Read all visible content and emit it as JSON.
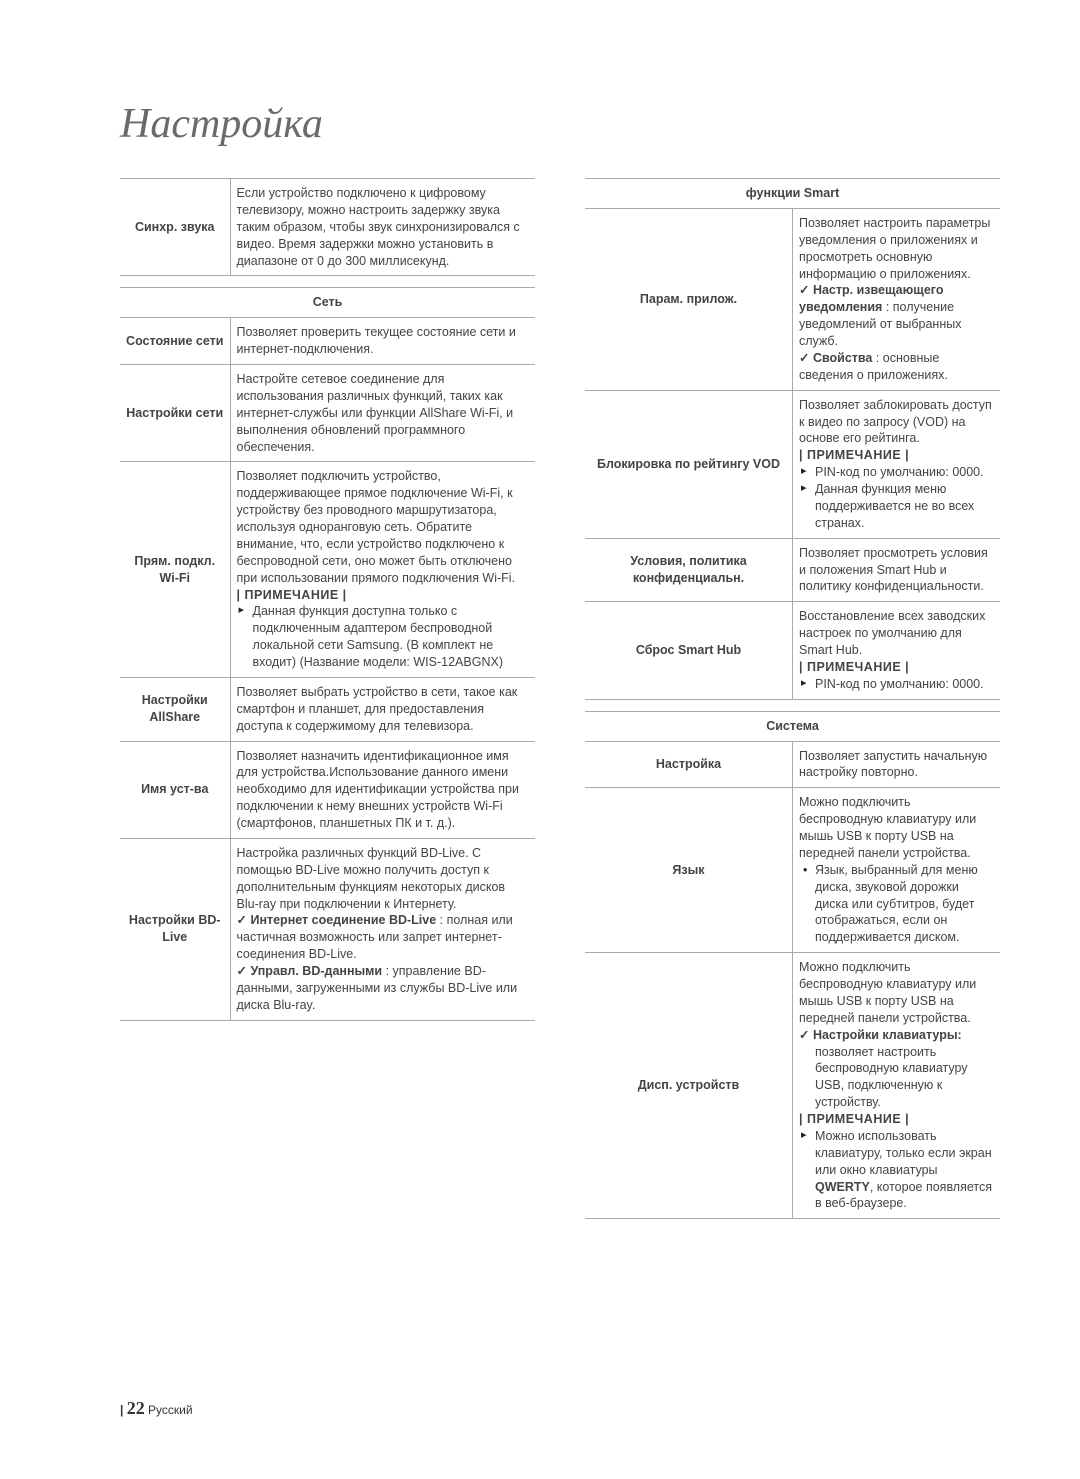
{
  "title": "Настройка",
  "footer": {
    "page": "22",
    "lang": "Русский"
  },
  "left": {
    "rows": [
      {
        "label": "Синхр. звука",
        "desc": "Если устройство подключено к цифровому телевизору, можно настроить задержку звука таким образом, чтобы звук синхронизировался с видео. Время задержки можно установить в диапазоне от 0 до 300 миллисекунд."
      }
    ],
    "net_header": "Сеть",
    "net": [
      {
        "label": "Состояние сети",
        "desc": "Позволяет проверить текущее состояние сети и интернет-подключения."
      },
      {
        "label": "Настройки сети",
        "desc": "Настройте сетевое соединение для использования различных функций, таких как интернет-службы или функции AllShare Wi-Fi, и выполнения обновлений программного обеспечения."
      },
      {
        "label": "Прям. подкл. Wi-Fi",
        "desc": "Позволяет подключить устройство, поддерживающее прямое подключение Wi-Fi, к устройству без проводного маршрутизатора, используя одноранговую сеть. Обратите внимание, что, если устройство подключено к беспроводной сети, оно может быть отключено при использовании прямого подключения Wi-Fi.",
        "note": "| ПРИМЕЧАНИЕ |",
        "bullets": [
          "Данная функция доступна только с подключенным адаптером беспроводной локальной сети Samsung. (В комплект не входит) (Название модели: WIS-12ABGNX)"
        ]
      },
      {
        "label": "Настройки AllShare",
        "desc": "Позволяет выбрать устройство в сети, такое как смартфон и планшет, для предоставления доступа к содержимому для телевизора."
      },
      {
        "label": "Имя уст-ва",
        "desc": "Позволяет назначить идентификационное имя для устройства.Использование данного имени необходимо для идентификации устройства при подключении к нему внешних устройств Wi-Fi (смартфонов, планшетных ПК и т. д.)."
      },
      {
        "label": "Настройки BD-Live",
        "desc": "Настройка различных функций BD-Live. С помощью BD-Live можно получить доступ к дополнительным функциям некоторых дисков Blu-ray при подключении к Интернету.",
        "checks": [
          {
            "t": "Интернет соединение BD-Live",
            "after": " : полная или частичная возможность или запрет интернет-соединения BD-Live."
          },
          {
            "t": "Управл. BD-данными",
            "after": " : управление BD-данными, загруженными из службы BD-Live или диска Blu-ray."
          }
        ]
      }
    ]
  },
  "right": {
    "smart_header": "функции Smart",
    "smart": [
      {
        "label": "Парам. прилож.",
        "desc": "Позволяет настроить параметры уведомления о приложениях и просмотреть основную информацию о приложениях.",
        "checks": [
          {
            "t": "Настр. извещающего уведомления",
            "after": " : получение уведомлений от выбранных служб."
          },
          {
            "t": "Свойства",
            "after": " : основные сведения о приложениях."
          }
        ]
      },
      {
        "label": "Блокировка по рейтингу VOD",
        "desc": "Позволяет заблокировать доступ к видео по запросу (VOD) на основе его рейтинга.",
        "note": "| ПРИМЕЧАНИЕ |",
        "bullets": [
          "PIN-код по умолчанию: 0000.",
          "Данная функция меню поддерживается не во всех странах."
        ]
      },
      {
        "label": "Условия, политика конфиденциальн.",
        "desc": "Позволяет просмотреть условия и положения Smart Hub и политику конфиденциальности."
      },
      {
        "label": "Сброс Smart Hub",
        "desc": "Восстановление всех заводских настроек по умолчанию для Smart Hub.",
        "note": "| ПРИМЕЧАНИЕ |",
        "bullets": [
          "PIN-код по умолчанию: 0000."
        ]
      }
    ],
    "sys_header": "Система",
    "sys": [
      {
        "label": "Настройка",
        "desc": "Позволяет запустить начальную настройку повторно."
      },
      {
        "label": "Язык",
        "desc": "Можно подключить беспроводную клавиатуру или мышь USB к порту USB на передней панели устройства.",
        "discs": [
          "Язык, выбранный для меню диска, звуковой дорожки диска или субтитров, будет отображаться, если он поддерживается диском."
        ]
      },
      {
        "label": "Дисп. устройств",
        "desc": "Можно подключить беспроводную клавиатуру или мышь USB к порту USB на передней панели устройства.",
        "checks": [
          {
            "t": "Настройки клавиатуры:",
            "after": " позволяет настроить беспроводную клавиатуру USB, подключенную к устройству."
          }
        ],
        "note": "| ПРИМЕЧАНИЕ |",
        "bulletsHtml": "Можно использовать клавиатуру, только если экран или окно клавиатуры <b>QWERTY</b>, которое появляется в веб-браузере."
      }
    ]
  }
}
